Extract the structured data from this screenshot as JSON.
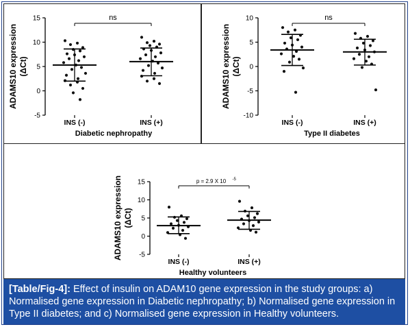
{
  "chart_data": [
    {
      "type": "scatter",
      "xlabel": "Diabetic nephropathy",
      "ylabel_line1": "ADAMS10 expression",
      "ylabel_line2": "(ΔCt)",
      "yticks": [
        "-5",
        "0",
        "5",
        "10",
        "15"
      ],
      "ylim": [
        -5,
        15
      ],
      "categories": [
        "INS (-)",
        "INS (+)"
      ],
      "annotation": "ns",
      "series": [
        {
          "mean": 5.3,
          "sd_low": 2.0,
          "sd_high": 8.6,
          "values": [
            10.3,
            9.8,
            9.5,
            8.9,
            8.5,
            8.2,
            7.6,
            7.4,
            7.0,
            6.6,
            6.2,
            5.8,
            5.3,
            4.8,
            4.4,
            3.6,
            3.2,
            2.5,
            2.1,
            1.8,
            1.2,
            0.5,
            -0.4,
            -1.8
          ]
        },
        {
          "mean": 6.0,
          "sd_low": 3.1,
          "sd_high": 8.8,
          "values": [
            11.0,
            10.2,
            9.9,
            9.6,
            9.3,
            9.0,
            8.6,
            8.3,
            7.8,
            7.4,
            7.0,
            6.6,
            6.1,
            5.7,
            5.2,
            4.7,
            4.2,
            3.6,
            3.0,
            2.5,
            2.0,
            1.5
          ]
        }
      ]
    },
    {
      "type": "scatter",
      "xlabel": "Type II diabetes",
      "ylabel_line1": "ADAMS10 expression",
      "ylabel_line2": "(ΔCt)",
      "yticks": [
        "-10",
        "-5",
        "0",
        "5",
        "10"
      ],
      "ylim": [
        -10,
        10
      ],
      "categories": [
        "INS (-)",
        "INS (+)"
      ],
      "annotation": "ns",
      "series": [
        {
          "mean": 3.4,
          "sd_low": 0.2,
          "sd_high": 6.6,
          "values": [
            8.0,
            7.5,
            7.1,
            6.4,
            5.9,
            5.5,
            4.8,
            4.4,
            4.0,
            3.6,
            3.1,
            2.6,
            2.1,
            1.5,
            0.9,
            -0.3,
            -1.0,
            -5.3
          ]
        },
        {
          "mean": 3.0,
          "sd_low": 0.3,
          "sd_high": 5.6,
          "values": [
            6.8,
            6.2,
            5.8,
            5.3,
            4.8,
            4.3,
            3.8,
            3.4,
            3.0,
            2.5,
            2.0,
            1.6,
            1.1,
            0.5,
            -0.2,
            -4.8
          ]
        }
      ]
    },
    {
      "type": "scatter",
      "xlabel": "Healthy volunteers",
      "ylabel_line1": "ADAMS10 expression",
      "ylabel_line2": "(ΔCt)",
      "yticks": [
        "-5",
        "0",
        "5",
        "10",
        "15"
      ],
      "ylim": [
        -5,
        15
      ],
      "categories": [
        "INS (-)",
        "INS (+)"
      ],
      "annotation": "p = 2.9 X 10",
      "annotation_exp": "-5",
      "series": [
        {
          "mean": 2.9,
          "sd_low": 0.7,
          "sd_high": 5.3,
          "values": [
            8.0,
            5.6,
            5.2,
            4.8,
            4.3,
            3.8,
            3.4,
            3.0,
            2.6,
            2.2,
            1.6,
            1.0,
            0.4,
            -0.6
          ]
        },
        {
          "mean": 4.4,
          "sd_low": 1.9,
          "sd_high": 6.8,
          "values": [
            9.6,
            7.8,
            6.9,
            6.2,
            5.6,
            5.1,
            4.7,
            4.3,
            3.9,
            3.4,
            2.9,
            2.3,
            1.6,
            1.1
          ]
        }
      ]
    }
  ],
  "caption": {
    "label": "[Table/Fig-4]:",
    "text": "Effect of insulin on ADAM10 gene expression in the study groups: a) Normalised gene expression in Diabetic nephropathy; b) Normalised gene expression in Type II diabetes; and c) Normalised gene expression in Healthy volunteers."
  }
}
